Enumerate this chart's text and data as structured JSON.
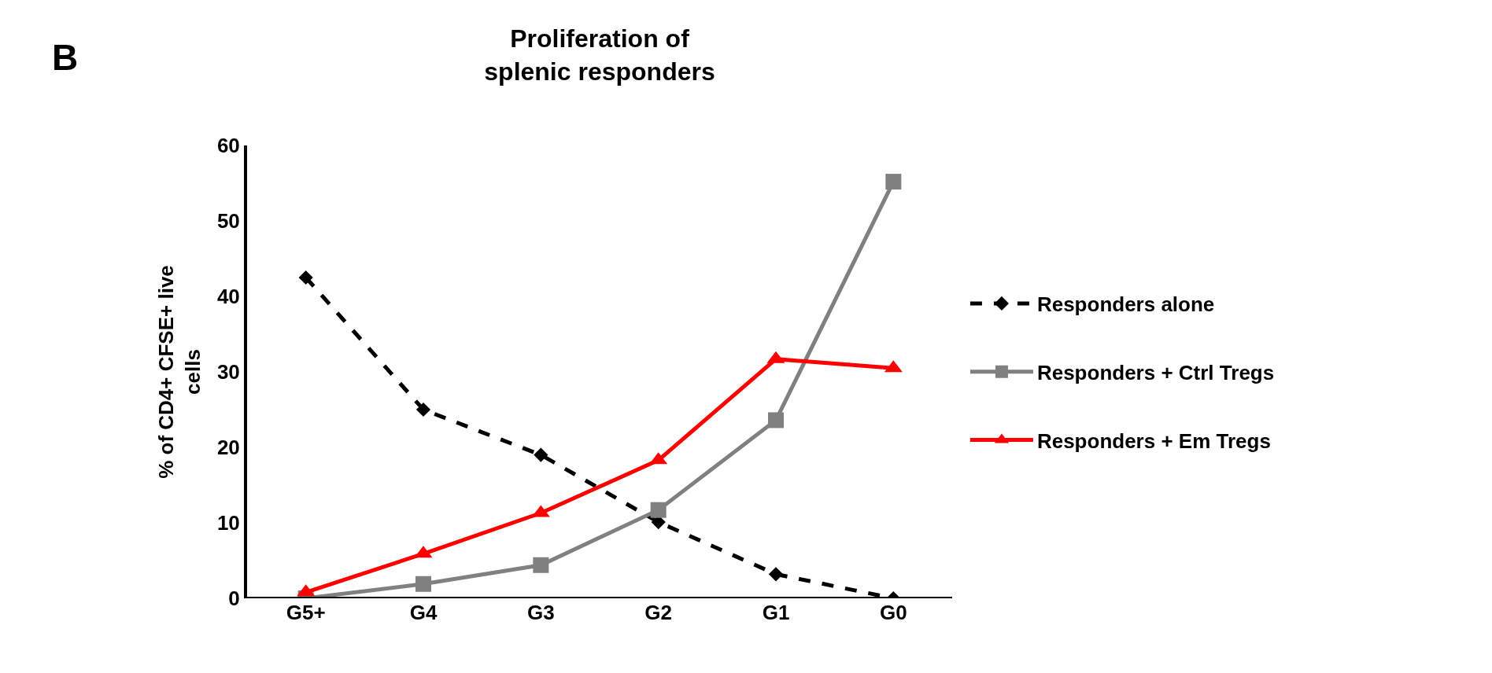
{
  "chart_data": {
    "type": "line",
    "title": "Proliferation of\nsplenic responders",
    "ylabel": "% of CD4+ CFSE+ live\ncells",
    "annotations": [
      "B"
    ],
    "categories": [
      "G5+",
      "G4",
      "G3",
      "G2",
      "G1",
      "G0"
    ],
    "series": [
      {
        "name": "Responders alone",
        "color": "#000000",
        "marker": "diamond",
        "line_style": "dashed",
        "values": [
          42.5,
          25.0,
          19.0,
          10.1,
          3.2,
          0
        ]
      },
      {
        "name": "Responders + Ctrl Tregs",
        "color": "#808080",
        "marker": "square",
        "line_style": "solid",
        "values": [
          0,
          1.9,
          4.4,
          11.7,
          23.6,
          55.2
        ]
      },
      {
        "name": "Responders + Em Tregs",
        "color": "#ff0000",
        "marker": "triangle",
        "line_style": "solid",
        "values": [
          0.8,
          5.9,
          11.3,
          18.3,
          31.7,
          30.5
        ]
      }
    ],
    "ylim": [
      0,
      60
    ],
    "yticks": [
      0,
      10,
      20,
      30,
      40,
      50,
      60
    ],
    "legend": "right"
  }
}
